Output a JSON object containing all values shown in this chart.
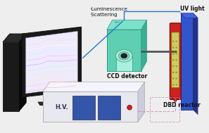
{
  "bg_color": "#eeeeee",
  "labels": {
    "luminescence": "·Luminescence",
    "scattering": "·Scattering",
    "ccd": "CCD detector",
    "hv": "H.V.",
    "uv": "UV light",
    "dbd": "DBD reactor"
  },
  "colors": {
    "monitor_dark": "#111111",
    "monitor_dark2": "#333333",
    "screen_bg": "#f0eaff",
    "ccd_front": "#5ecfb0",
    "ccd_top": "#7de0c8",
    "ccd_right": "#3aaf95",
    "ccd_face_light": "#aaeedd",
    "hv_front": "#e8e8f0",
    "hv_top": "#f5f5ff",
    "hv_right": "#ccccdd",
    "hv_blue": "#3355aa",
    "hv_red": "#cc2222",
    "uv_front": "#3355cc",
    "uv_right": "#223388",
    "uv_top": "#4466dd",
    "dbd_outer": "#cc2222",
    "dbd_inner": "#cccc66",
    "cable_blue": "#2277cc",
    "cable_pink": "#cc88bb",
    "text_color": "#111111",
    "spectrum": [
      "#ffaaaa",
      "#ffccaa",
      "#ffeeaa",
      "#ccffaa",
      "#aaffcc",
      "#aaaaff",
      "#ffaaff",
      "#aaffff",
      "#ffffff",
      "#ffddaa"
    ]
  }
}
